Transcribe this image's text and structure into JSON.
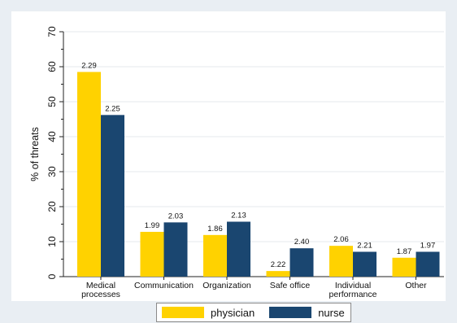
{
  "chart_data": {
    "type": "bar",
    "ylabel": "% of threats",
    "xlabel": "",
    "ylim": [
      0,
      70
    ],
    "yticks": [
      0,
      10,
      20,
      30,
      40,
      50,
      60,
      70
    ],
    "grid": true,
    "legend_position": "bottom",
    "categories": [
      "Medical processes",
      "Communication",
      "Organization",
      "Safe office",
      "Individual performance",
      "Other"
    ],
    "category_lines": [
      [
        "Medical",
        "processes"
      ],
      [
        "Communication"
      ],
      [
        "Organization"
      ],
      [
        "Safe office"
      ],
      [
        "Individual",
        "performance"
      ],
      [
        "Other"
      ]
    ],
    "series": [
      {
        "name": "physician",
        "color": "#ffd200",
        "values": [
          58.5,
          12.8,
          11.9,
          1.6,
          8.8,
          5.4
        ],
        "labels": [
          "2.29",
          "1.99",
          "1.86",
          "2.22",
          "2.06",
          "1.87"
        ]
      },
      {
        "name": "nurse",
        "color": "#1a4670",
        "values": [
          46.2,
          15.5,
          15.7,
          8.1,
          7.1,
          7.1
        ],
        "labels": [
          "2.25",
          "2.03",
          "2.13",
          "2.40",
          "2.21",
          "1.97"
        ]
      }
    ]
  }
}
